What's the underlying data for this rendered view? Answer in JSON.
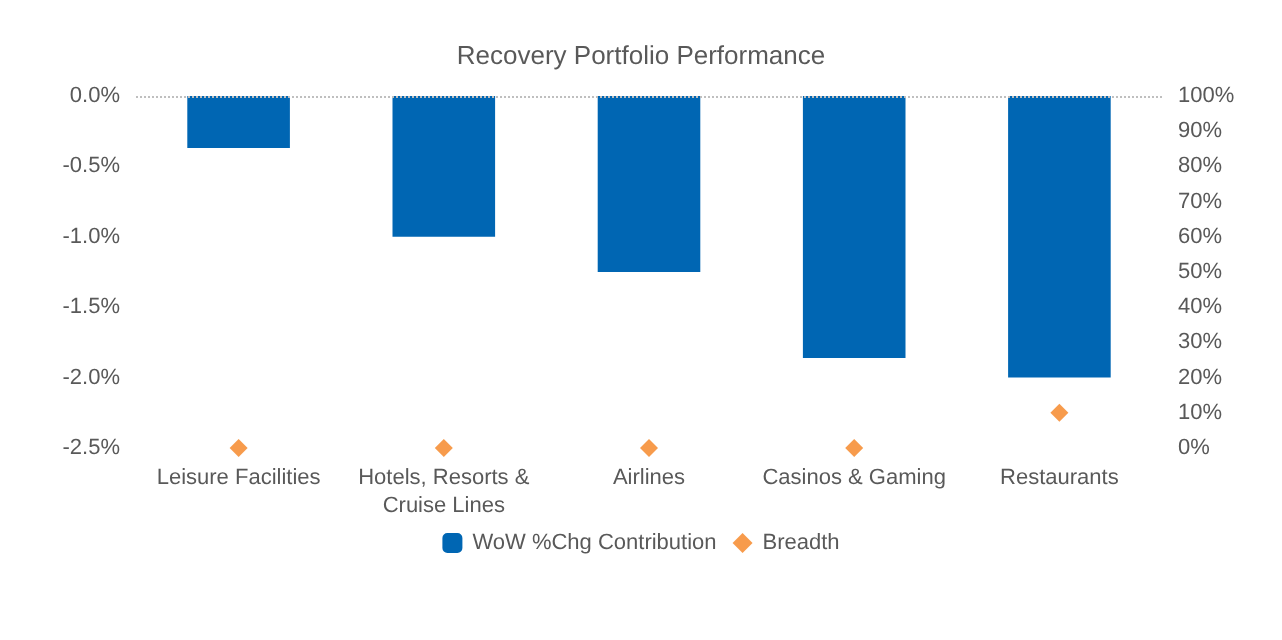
{
  "chart_data": {
    "type": "bar",
    "title": "Recovery Portfolio Performance",
    "categories": [
      "Leisure Facilities",
      "Hotels, Resorts &\nCruise Lines",
      "Airlines",
      "Casinos & Gaming",
      "Restaurants"
    ],
    "series": [
      {
        "name": "WoW %Chg Contribution",
        "color": "#0066b3",
        "values": [
          -0.37,
          -1.0,
          -1.25,
          -1.86,
          -2.0
        ]
      },
      {
        "name": "Breadth",
        "type": "scatter",
        "axis": "y2",
        "marker": "diamond",
        "color": "#f5821f",
        "values": [
          0,
          0,
          0,
          0,
          10
        ]
      }
    ],
    "ylim": [
      -2.5,
      0
    ],
    "yticks": [
      {
        "value": -2.5,
        "label": "-2.5%"
      },
      {
        "value": -2,
        "label": "-2.0%"
      },
      {
        "value": -1.5,
        "label": "-1.5%"
      },
      {
        "value": -1,
        "label": "-1.0%"
      },
      {
        "value": -0.5,
        "label": "-0.5%"
      },
      {
        "value": 0,
        "label": "0.0%"
      }
    ],
    "y2lim": [
      0,
      100
    ],
    "y2ticks": [
      {
        "value": 0,
        "label": "0%"
      },
      {
        "value": 10,
        "label": "10%"
      },
      {
        "value": 20,
        "label": "20%"
      },
      {
        "value": 30,
        "label": "30%"
      },
      {
        "value": 40,
        "label": "40%"
      },
      {
        "value": 50,
        "label": "50%"
      },
      {
        "value": 60,
        "label": "60%"
      },
      {
        "value": 70,
        "label": "70%"
      },
      {
        "value": 80,
        "label": "80%"
      },
      {
        "value": 90,
        "label": "90%"
      },
      {
        "value": 100,
        "label": "100%"
      }
    ],
    "ref_lines": [
      {
        "axis": "y",
        "value": 0,
        "color": "#bfbfbf",
        "line_style": "dotted"
      }
    ],
    "grid": false,
    "legend": "bottom"
  }
}
